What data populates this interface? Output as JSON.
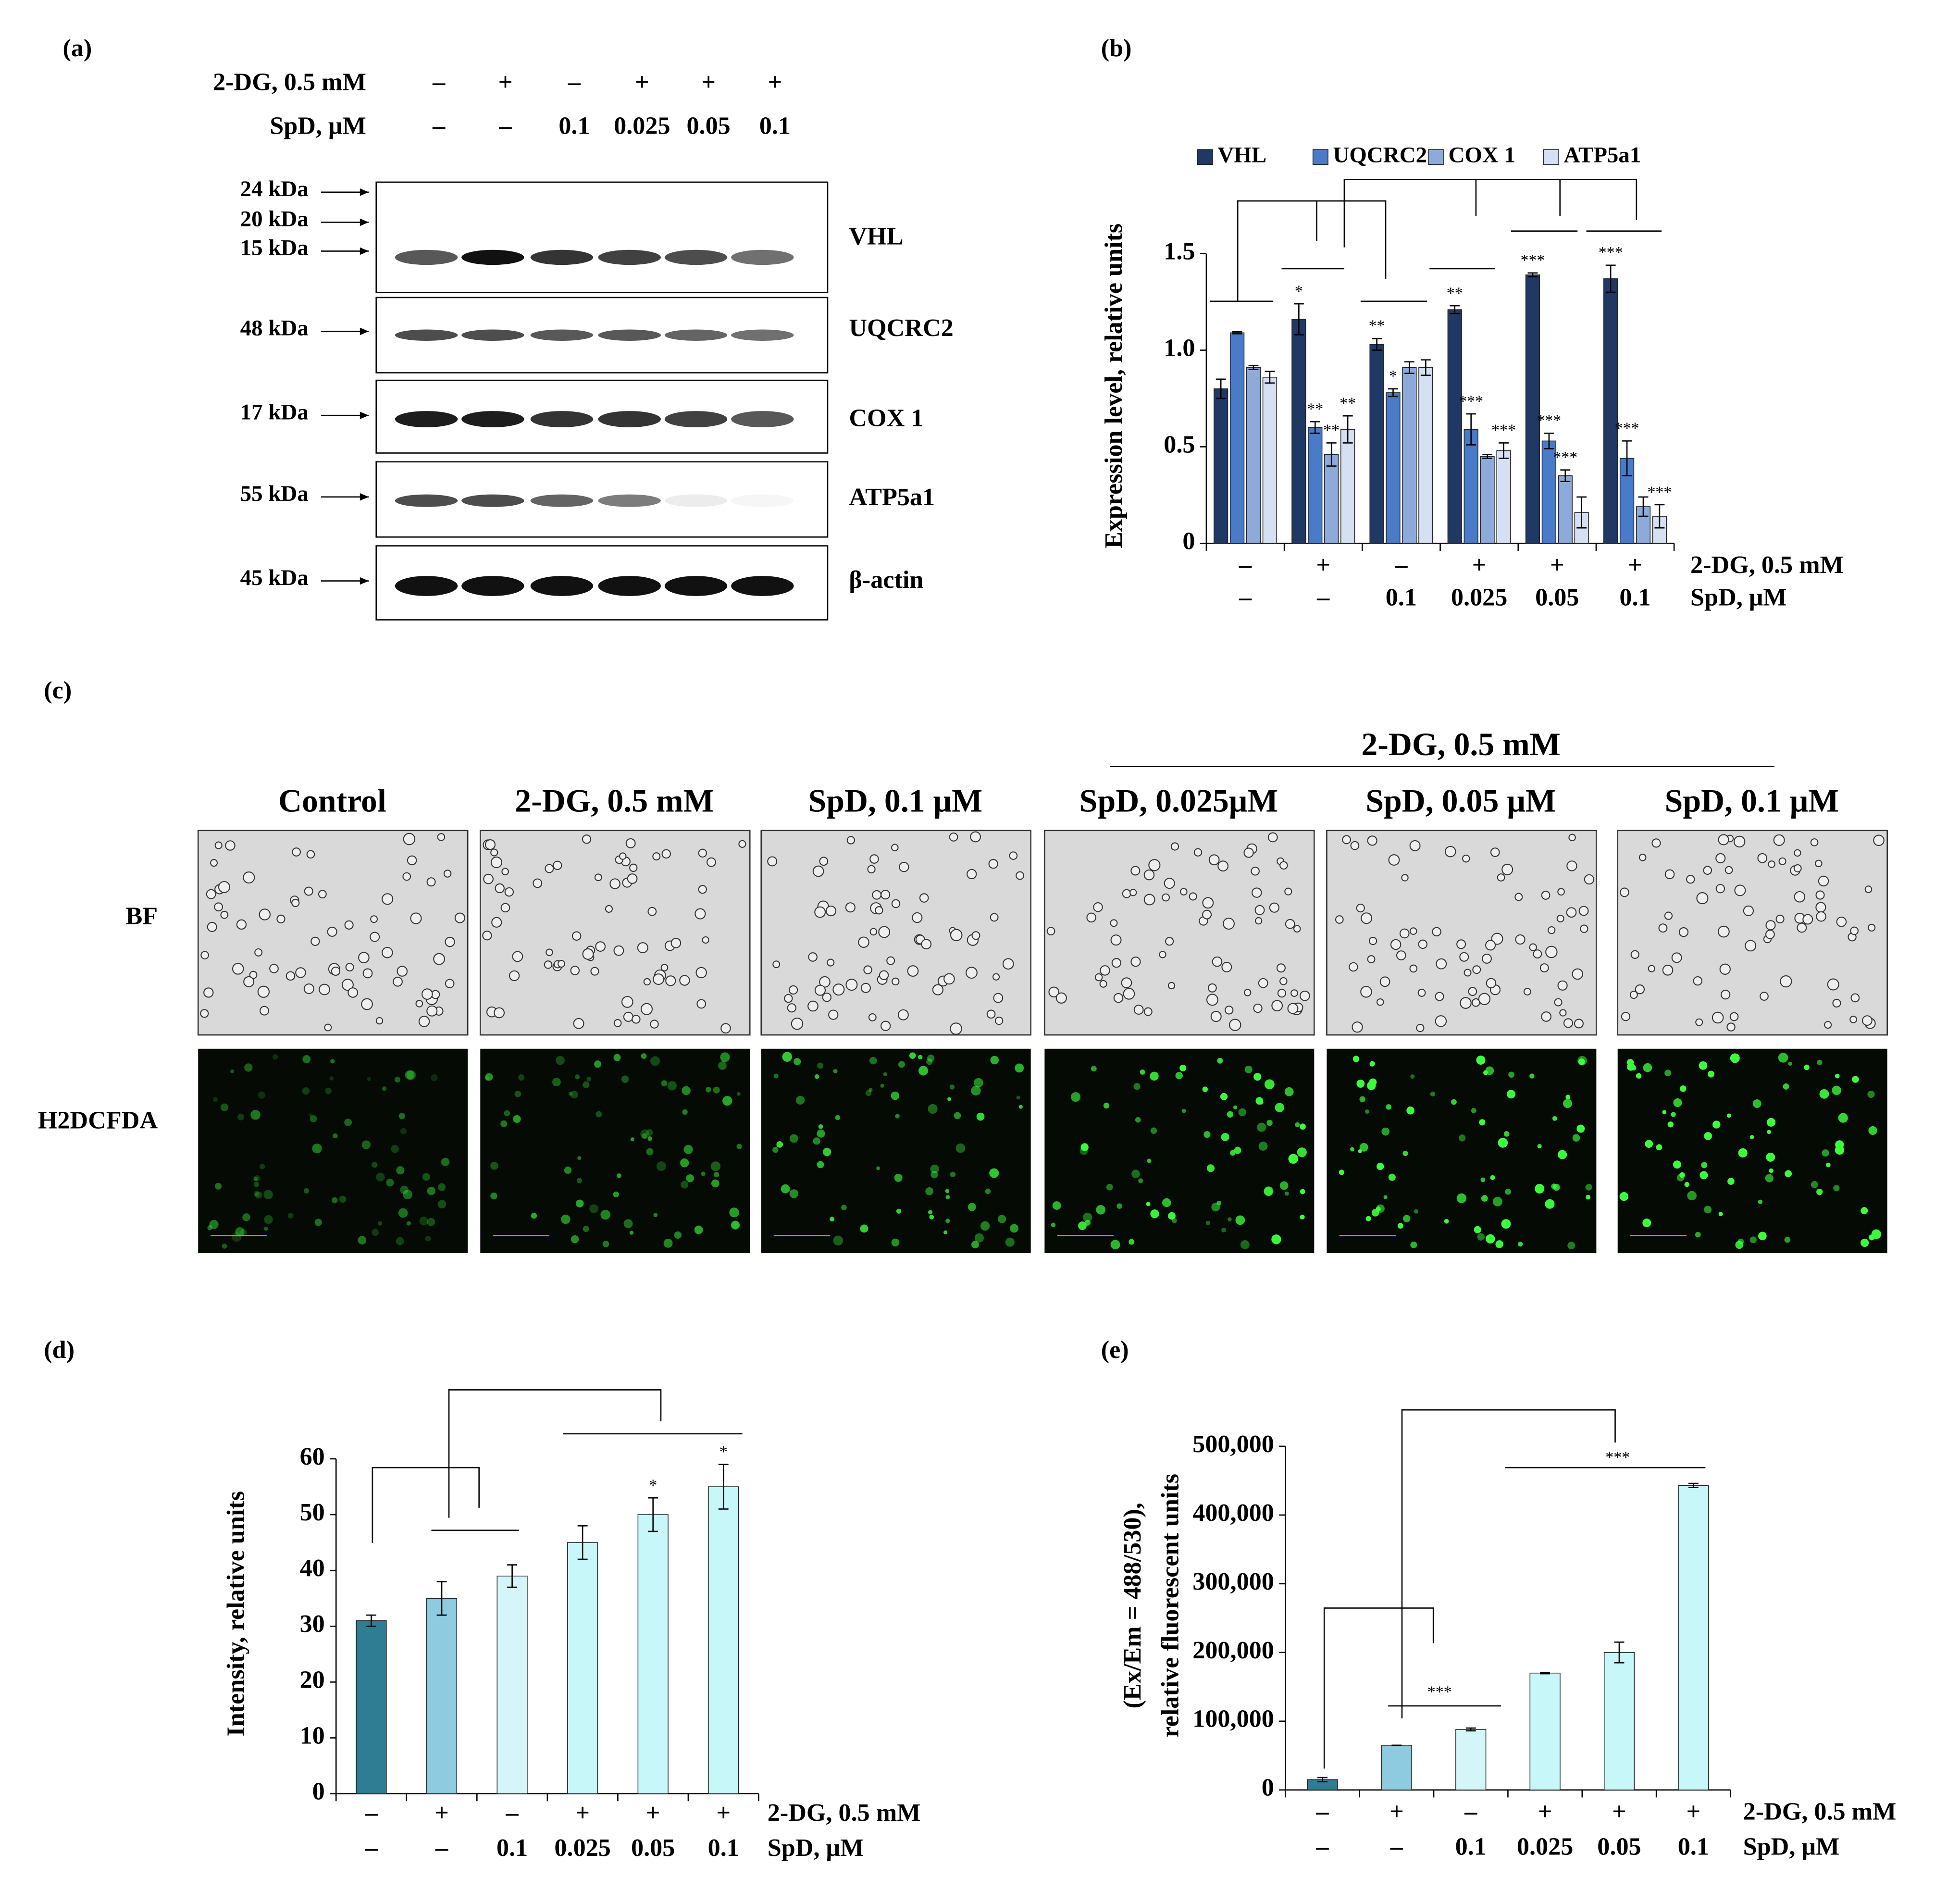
{
  "panel_labels": [
    "(a)",
    "(b)",
    "(c)",
    "(d)",
    "(e)"
  ],
  "blot": {
    "row_labels": [
      "2-DG, 0.5 mM",
      "SpD, μM"
    ],
    "treatment_2dg": [
      "–",
      "+",
      "–",
      "+",
      "+",
      "+"
    ],
    "treatment_spd": [
      "–",
      "–",
      "0.1",
      "0.025",
      "0.05",
      "0.1"
    ],
    "markers": [
      "24 kDa",
      "20 kDa",
      "15 kDa",
      "48 kDa",
      "17 kDa",
      "55 kDa",
      "45 kDa"
    ],
    "proteins": [
      "VHL",
      "UQCRC2",
      "COX 1",
      "ATP5a1",
      "β-actin"
    ]
  },
  "micrographs": {
    "header": "2-DG, 0.5 mM",
    "columns": [
      "Control",
      "2-DG, 0.5 mM",
      "SpD, 0.1 μM",
      "SpD, 0.025μM",
      "SpD, 0.05 μM",
      "SpD, 0.1 μM"
    ],
    "rows": [
      "BF",
      "H2DCFDA"
    ]
  },
  "chart_data": [
    {
      "type": "bar",
      "ylabel": "Expression level,  relative units",
      "categories": [
        "–",
        "+",
        "–",
        "+",
        "+",
        "+"
      ],
      "categories2": [
        "–",
        "–",
        "0.1",
        "0.025",
        "0.05",
        "0.1"
      ],
      "row_labels": [
        "2-DG, 0.5 mM",
        "SpD, μM"
      ],
      "ylim": [
        0,
        1.5
      ],
      "yticks": [
        0,
        0.5,
        {
          "value": 1,
          "label": "1.0"
        },
        1.5
      ],
      "series": [
        {
          "name": "VHL",
          "color": "#1f3864",
          "values": [
            0.8,
            1.16,
            1.03,
            1.21,
            1.39,
            1.37
          ],
          "errors": [
            0.05,
            0.08,
            0.03,
            0.02,
            0.01,
            0.07
          ],
          "sig": [
            null,
            "*",
            "**",
            "**",
            "***",
            "***"
          ]
        },
        {
          "name": "UQCRC2",
          "color": "#4a7bc8",
          "values": [
            1.09,
            0.6,
            0.78,
            0.59,
            0.53,
            0.44
          ],
          "errors": [
            0.005,
            0.03,
            0.02,
            0.08,
            0.04,
            0.09
          ],
          "sig": [
            null,
            "**",
            "*",
            "***",
            "***",
            "***"
          ]
        },
        {
          "name": "COX 1",
          "color": "#8eaadb",
          "values": [
            0.91,
            0.46,
            0.91,
            0.45,
            0.35,
            0.19
          ],
          "errors": [
            0.01,
            0.06,
            0.03,
            0.01,
            0.03,
            0.05
          ],
          "sig": [
            null,
            "**",
            null,
            null,
            "***",
            null
          ]
        },
        {
          "name": "ATP5a1",
          "color": "#d5e0f2",
          "values": [
            0.86,
            0.59,
            0.91,
            0.48,
            0.16,
            0.14
          ],
          "errors": [
            0.03,
            0.07,
            0.04,
            0.04,
            0.08,
            0.06
          ],
          "sig": [
            null,
            "**",
            null,
            "***",
            null,
            "***"
          ]
        }
      ]
    },
    {
      "type": "bar",
      "ylabel": "Intensity,  relative units",
      "categories": [
        "–",
        "+",
        "–",
        "+",
        "+",
        "+"
      ],
      "categories2": [
        "–",
        "–",
        "0.1",
        "0.025",
        "0.05",
        "0.1"
      ],
      "row_labels": [
        "2-DG, 0.5 mM",
        "SpD, μM"
      ],
      "ylim": [
        0,
        60
      ],
      "yticks": [
        0,
        10,
        20,
        30,
        40,
        50,
        60
      ],
      "values": [
        31,
        35,
        39,
        45,
        50,
        55
      ],
      "errors": [
        1,
        3,
        2,
        3,
        3,
        4
      ],
      "colors": [
        "#2e7d92",
        "#8ecae0",
        "#d4f6f9",
        "#c8f7fa",
        "#c8f7fa",
        "#c8f7fa"
      ],
      "sig": [
        null,
        null,
        null,
        null,
        "*",
        "*"
      ]
    },
    {
      "type": "bar",
      "ylabel": [
        "(Ex/Em = 488/530),",
        "relative fluorescent units"
      ],
      "categories": [
        "–",
        "+",
        "–",
        "+",
        "+",
        "+"
      ],
      "categories2": [
        "–",
        "–",
        "0.1",
        "0.025",
        "0.05",
        "0.1"
      ],
      "row_labels": [
        "2-DG, 0.5 mM",
        "SpD, μM"
      ],
      "ylim": [
        0,
        500000
      ],
      "yticks": [
        0,
        {
          "value": 100000,
          "label": "100,000"
        },
        {
          "value": 200000,
          "label": "200,000"
        },
        {
          "value": 300000,
          "label": "300,000"
        },
        {
          "value": 400000,
          "label": "400,000"
        },
        {
          "value": 500000,
          "label": "500,000"
        }
      ],
      "values": [
        15000,
        65000,
        88000,
        170000,
        200000,
        443000
      ],
      "errors": [
        3000,
        0,
        2000,
        1000,
        15000,
        3000
      ],
      "colors": [
        "#2e7d92",
        "#8ecae0",
        "#d4f6f9",
        "#c8f7fa",
        "#c8f7fa",
        "#c8f7fa"
      ],
      "annotations": [
        "***",
        "***"
      ]
    }
  ]
}
